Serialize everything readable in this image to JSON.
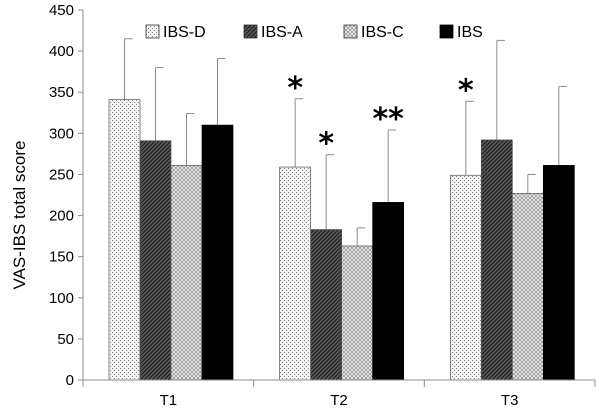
{
  "chart_data": {
    "type": "bar",
    "ylabel": "VAS-IBS total score",
    "xlabel": "",
    "ylim": [
      0,
      450
    ],
    "y_ticks": [
      "0",
      "50",
      "100",
      "150",
      "200",
      "250",
      "300",
      "350",
      "400",
      "450"
    ],
    "categories": [
      "T1",
      "T2",
      "T3"
    ],
    "legend_position": "top",
    "grid": false,
    "series": [
      {
        "name": "IBS-D",
        "pattern": "dotted-light",
        "values": [
          341,
          259,
          249
        ],
        "errors": [
          415,
          342,
          339
        ]
      },
      {
        "name": "IBS-A",
        "pattern": "diagonal-hatch-dark",
        "values": [
          291,
          183,
          292
        ],
        "errors": [
          380,
          274,
          413
        ]
      },
      {
        "name": "IBS-C",
        "pattern": "crosshatch-light",
        "values": [
          261,
          163,
          227
        ],
        "errors": [
          324,
          185,
          250
        ]
      },
      {
        "name": "IBS",
        "pattern": "solid-black",
        "values": [
          310,
          216,
          261
        ],
        "errors": [
          391,
          304,
          357
        ]
      }
    ],
    "significance": [
      {
        "category": 1,
        "series": 0,
        "label": "*"
      },
      {
        "category": 1,
        "series": 1,
        "label": "*"
      },
      {
        "category": 1,
        "series": 3,
        "label": "**"
      },
      {
        "category": 2,
        "series": 0,
        "label": "*"
      }
    ]
  }
}
